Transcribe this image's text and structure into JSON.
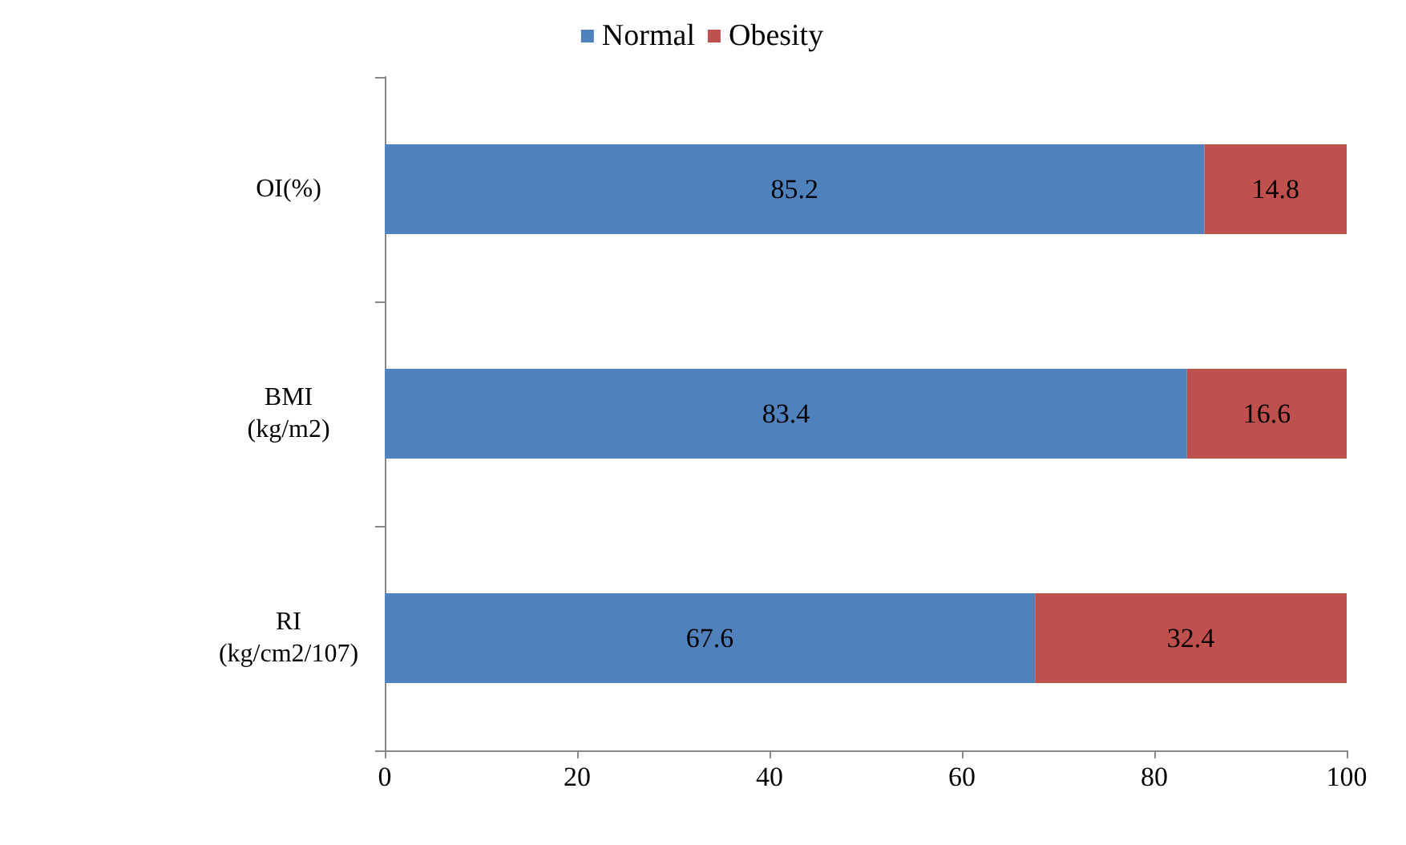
{
  "chart_data": {
    "type": "bar",
    "orientation": "horizontal",
    "stacked": true,
    "data_labels": true,
    "grid": false,
    "legend": "top",
    "categories": [
      "OI(%)",
      "BMI\n(kg/m2)",
      "RI\n(kg/cm2/107)"
    ],
    "series": [
      {
        "name": "Normal",
        "color": "#4f81bd",
        "values": [
          85.2,
          83.4,
          67.6
        ]
      },
      {
        "name": "Obesity",
        "color": "#c0504d",
        "values": [
          14.8,
          16.6,
          32.4
        ]
      }
    ],
    "xlim": [
      0,
      100
    ],
    "xticks": [
      0,
      20,
      40,
      60,
      80,
      100
    ]
  }
}
